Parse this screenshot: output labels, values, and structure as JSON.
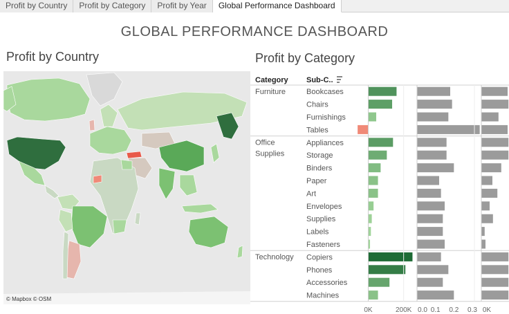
{
  "tabs": [
    {
      "label": "Profit by Country",
      "active": false
    },
    {
      "label": "Profit by Category",
      "active": false
    },
    {
      "label": "Profit by Year",
      "active": false
    },
    {
      "label": "Global Performance Dashboard",
      "active": true
    }
  ],
  "dashboard_title": "GLOBAL PERFORMANCE DASHBOARD",
  "map": {
    "title": "Profit by Country",
    "attribution": "© Mapbox  © OSM"
  },
  "category_panel": {
    "title": "Profit by Category",
    "col_category": "Category",
    "col_subcategory": "Sub-C..",
    "sort_icon": "sort-descending-icon"
  },
  "chart_data": {
    "type": "bar",
    "groups": [
      {
        "category": "Furniture",
        "items": [
          {
            "sub": "Bookcases",
            "profit": 160000,
            "c2": 0.18,
            "c3": 0.95
          },
          {
            "sub": "Chairs",
            "profit": 135000,
            "c2": 0.19,
            "c3": 0.98
          },
          {
            "sub": "Furnishings",
            "profit": 45000,
            "c2": 0.17,
            "c3": 0.62
          },
          {
            "sub": "Tables",
            "profit": -60000,
            "c2": 0.34,
            "c3": 0.95
          }
        ]
      },
      {
        "category": "Office Supplies",
        "items": [
          {
            "sub": "Appliances",
            "profit": 140000,
            "c2": 0.16,
            "c3": 0.98
          },
          {
            "sub": "Storage",
            "profit": 105000,
            "c2": 0.16,
            "c3": 0.98
          },
          {
            "sub": "Binders",
            "profit": 70000,
            "c2": 0.2,
            "c3": 0.72
          },
          {
            "sub": "Paper",
            "profit": 55000,
            "c2": 0.12,
            "c3": 0.4
          },
          {
            "sub": "Art",
            "profit": 55000,
            "c2": 0.13,
            "c3": 0.58
          },
          {
            "sub": "Envelopes",
            "profit": 30000,
            "c2": 0.15,
            "c3": 0.3
          },
          {
            "sub": "Supplies",
            "profit": 20000,
            "c2": 0.14,
            "c3": 0.42
          },
          {
            "sub": "Labels",
            "profit": 15000,
            "c2": 0.14,
            "c3": 0.12
          },
          {
            "sub": "Fasteners",
            "profit": 10000,
            "c2": 0.15,
            "c3": 0.15
          }
        ]
      },
      {
        "category": "Technology",
        "items": [
          {
            "sub": "Copiers",
            "profit": 250000,
            "c2": 0.13,
            "c3": 0.98
          },
          {
            "sub": "Phones",
            "profit": 210000,
            "c2": 0.17,
            "c3": 0.98
          },
          {
            "sub": "Accessories",
            "profit": 120000,
            "c2": 0.14,
            "c3": 0.98
          },
          {
            "sub": "Machines",
            "profit": 55000,
            "c2": 0.2,
            "c3": 0.98
          }
        ]
      }
    ],
    "profit_axis": {
      "ticks": [
        "0K",
        "200K"
      ],
      "range": [
        -80000,
        260000
      ]
    },
    "col2_axis": {
      "ticks": [
        "0.0",
        "0.1",
        "0.2",
        "0.3"
      ],
      "range": [
        0,
        0.33
      ]
    },
    "col3_axis": {
      "ticks": [
        "0K"
      ]
    },
    "colors": {
      "positive_dark": "#1e6b35",
      "positive_light": "#a8dba0",
      "negative": "#f08a78",
      "gray_bar": "#9b9b9b"
    }
  }
}
